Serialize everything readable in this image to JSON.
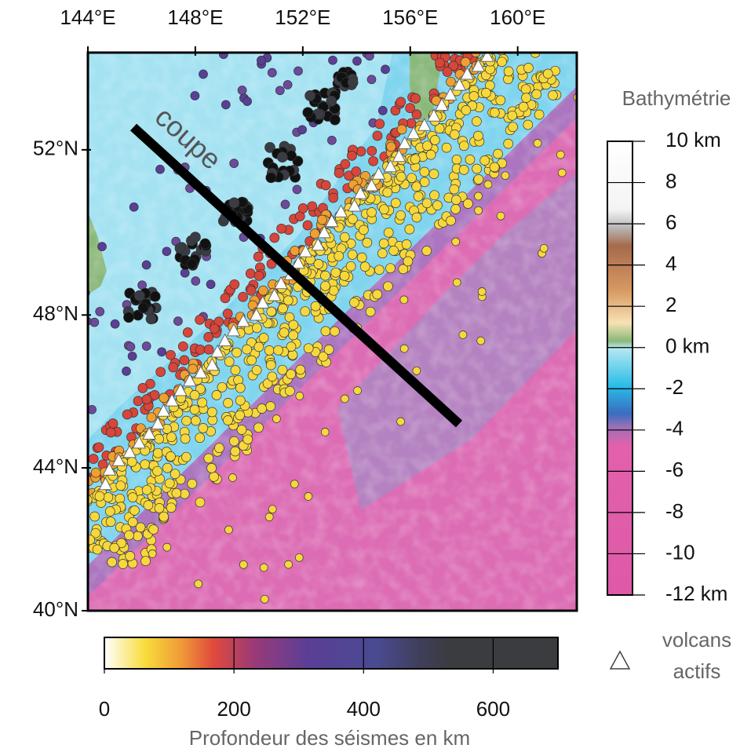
{
  "map": {
    "xlim": [
      144,
      162.2
    ],
    "ylim": [
      40,
      54.2
    ],
    "xticks": [
      {
        "value": 144,
        "label": "144°E"
      },
      {
        "value": 148,
        "label": "148°E"
      },
      {
        "value": 152,
        "label": "152°E"
      },
      {
        "value": 156,
        "label": "156°E"
      },
      {
        "value": 160,
        "label": "160°E"
      }
    ],
    "yticks": [
      {
        "value": 40,
        "label": "40°N"
      },
      {
        "value": 44,
        "label": "44°N"
      },
      {
        "value": 48,
        "label": "48°N"
      },
      {
        "value": 52,
        "label": "52°N"
      }
    ],
    "annotation": "coupe"
  },
  "depth_scale": {
    "title": "Profondeur des séismes en km",
    "xlim": [
      0,
      700
    ],
    "xticks": [
      0,
      200,
      400,
      600
    ]
  },
  "bathymetry_scale": {
    "title": "Bathymétrie",
    "ylim": [
      -12,
      10
    ],
    "yticks": [
      {
        "value": 10,
        "label": "10 km"
      },
      8,
      6,
      4,
      2,
      {
        "value": 0,
        "label": "0 km"
      },
      -2,
      -4,
      -6,
      -8,
      -10,
      {
        "value": -12,
        "label": "-12 km"
      }
    ]
  },
  "legend": {
    "volcano_label": [
      "volcans",
      "actifs"
    ]
  }
}
